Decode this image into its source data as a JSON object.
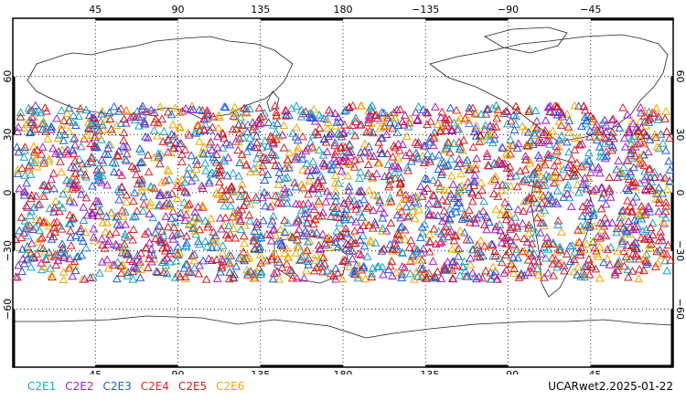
{
  "map": {
    "top_lon_labels": [
      "45",
      "90",
      "135",
      "180",
      "−135",
      "−90",
      "−45"
    ],
    "bottom_lon_labels": [
      "45",
      "90",
      "135",
      "180",
      "−135",
      "−90",
      "−45"
    ],
    "lat_labels": [
      "60",
      "30",
      "0",
      "−30",
      "−60"
    ],
    "lat_values": [
      60,
      30,
      0,
      -30,
      -60
    ],
    "lon_values": [
      45,
      90,
      135,
      180,
      225,
      270,
      315
    ],
    "lon_range": [
      0,
      360
    ],
    "lat_range": [
      -90,
      90
    ],
    "grid": "dotted",
    "marker": "triangle-outline",
    "occultation_lat_band": [
      -45,
      45
    ]
  },
  "legend": {
    "items": [
      {
        "label": "C2E1",
        "color": "#1fa3c6"
      },
      {
        "label": "C2E2",
        "color": "#a020c0"
      },
      {
        "label": "C2E3",
        "color": "#1a5fd6"
      },
      {
        "label": "C2E4",
        "color": "#e0242a"
      },
      {
        "label": "C2E5",
        "color": "#c81e1e"
      },
      {
        "label": "C2E6",
        "color": "#f0a800"
      }
    ]
  },
  "source_label": "UCARwet2.2025-01-22"
}
